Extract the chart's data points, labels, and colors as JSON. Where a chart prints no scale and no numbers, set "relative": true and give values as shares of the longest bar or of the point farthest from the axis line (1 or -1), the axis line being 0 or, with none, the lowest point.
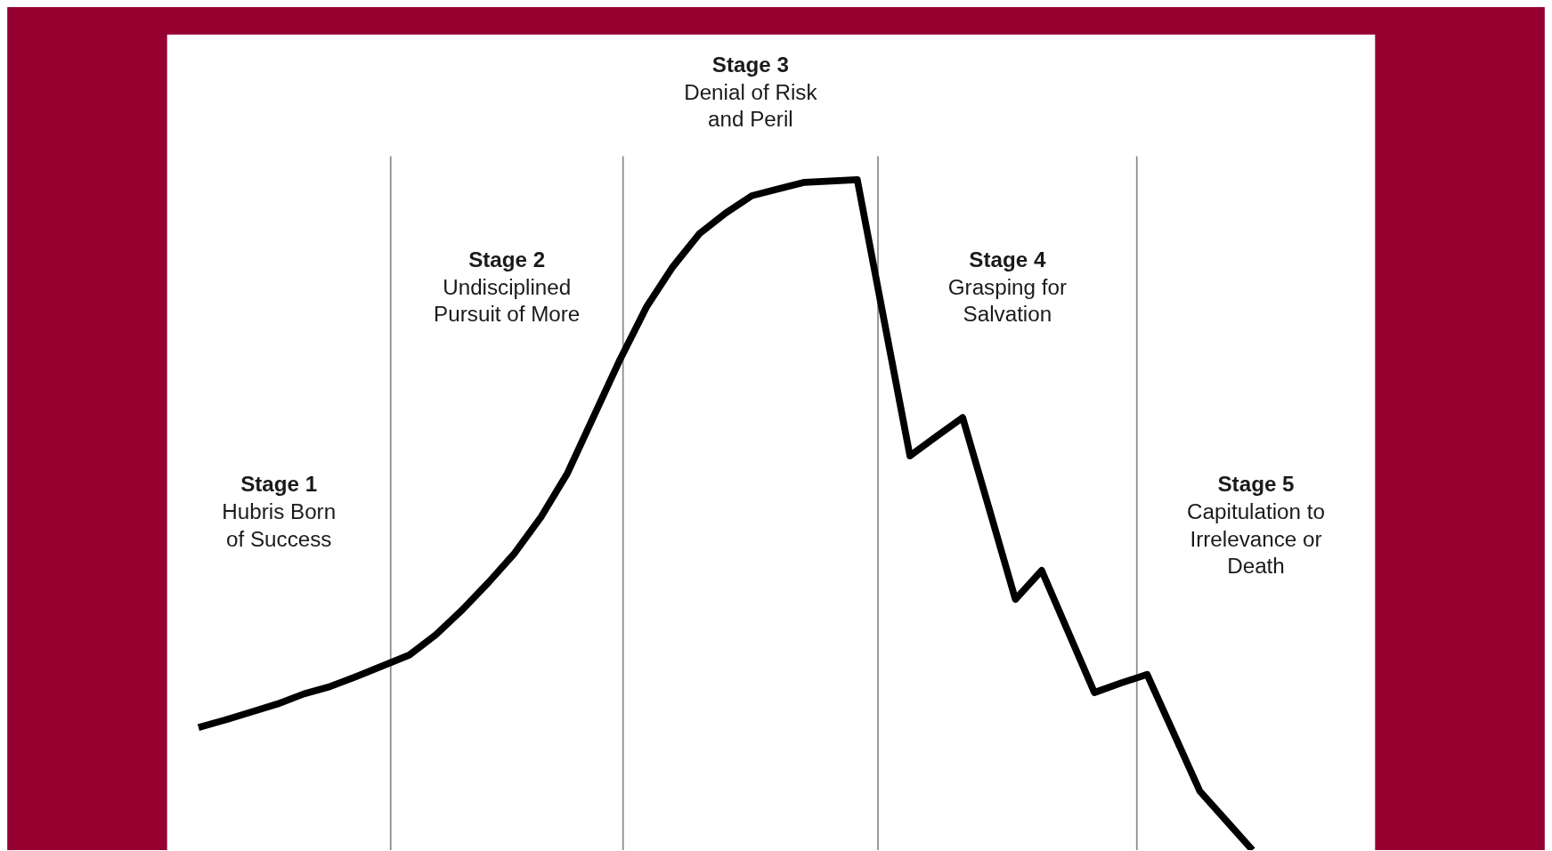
{
  "chart_data": {
    "type": "line",
    "relative": true,
    "categories": [
      null,
      null,
      null,
      null,
      null,
      null,
      null,
      null,
      null,
      null,
      null,
      null,
      null,
      null,
      null,
      null,
      null,
      null,
      null,
      null,
      null,
      null,
      null,
      null,
      null,
      null,
      null,
      null,
      null,
      null,
      null,
      null,
      null,
      null,
      null,
      null,
      null,
      null,
      null,
      null,
      null
    ],
    "series": [
      {
        "color": "#000000",
        "values": [
          0.183,
          0.194,
          0.206,
          0.218,
          0.233,
          0.244,
          0.259,
          0.275,
          0.291,
          0.321,
          0.358,
          0.399,
          0.443,
          0.497,
          0.562,
          0.647,
          0.732,
          0.81,
          0.87,
          0.919,
          0.95,
          0.976,
          0.986,
          0.996,
          0.998,
          1.0,
          0.794,
          0.588,
          0.617,
          0.645,
          0.51,
          0.374,
          0.417,
          0.326,
          0.235,
          0.249,
          0.262,
          0.175,
          0.088,
          0.044,
          0
        ]
      }
    ],
    "annotations": [
      "Stage 1\nHubris Born\nof Success",
      "Stage 2\nUndisciplined\nPursuit of More",
      "Stage 3\nDenial of Risk\nand Peril",
      "Stage 4\nGrasping for\nSalvation",
      "Stage 5\nCapitulation to\nIrrelevance or\nDeath"
    ]
  }
}
